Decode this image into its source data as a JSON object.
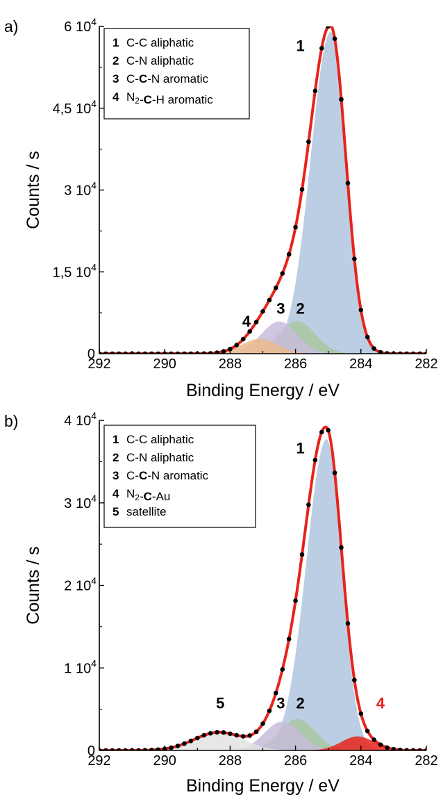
{
  "chart_data": [
    {
      "type": "area",
      "panel_label": "a)",
      "xlabel": "Binding Energy / eV",
      "ylabel": "Counts / s",
      "xlim": [
        292,
        282
      ],
      "x_reversed": true,
      "ylim": [
        0,
        60000
      ],
      "x_ticks": [
        "292",
        "290",
        "288",
        "286",
        "284",
        "282"
      ],
      "y_ticks": [
        {
          "mantissa": "0",
          "exp": ""
        },
        {
          "mantissa": "1,5 10",
          "exp": "4"
        },
        {
          "mantissa": "3 10",
          "exp": "4"
        },
        {
          "mantissa": "4,5 10",
          "exp": "4"
        },
        {
          "mantissa": "6 10",
          "exp": "4"
        }
      ],
      "legend_position": "top-left",
      "legend": [
        {
          "num": "1",
          "parts": [
            {
              "t": "C-C aliphatic"
            }
          ]
        },
        {
          "num": "2",
          "parts": [
            {
              "t": "C-N aliphatic"
            }
          ]
        },
        {
          "num": "3",
          "parts": [
            {
              "t": "C-"
            },
            {
              "t": "C",
              "b": true
            },
            {
              "t": "-N aromatic"
            }
          ]
        },
        {
          "num": "4",
          "parts": [
            {
              "t": "N"
            },
            {
              "t": "2",
              "sub": true
            },
            {
              "t": "-"
            },
            {
              "t": "C",
              "b": true
            },
            {
              "t": "-H aromatic"
            }
          ]
        }
      ],
      "components": [
        {
          "label": "1",
          "center": 284.92,
          "height": 59000,
          "sigma_low_be": 0.46,
          "sigma_high_be": 0.62,
          "color": "#b8cbe3",
          "label_at": [
            285.85,
            55500
          ],
          "label_color": "#000000"
        },
        {
          "label": "2",
          "center": 285.95,
          "height": 6000,
          "sigma_low_be": 0.55,
          "sigma_high_be": 0.55,
          "color": "#a9c7a0",
          "label_at": [
            285.85,
            7300
          ],
          "label_color": "#000000"
        },
        {
          "label": "3",
          "center": 286.5,
          "height": 5900,
          "sigma_low_be": 0.55,
          "sigma_high_be": 0.55,
          "color": "#c8bcdb",
          "label_at": [
            286.45,
            7300
          ],
          "label_color": "#000000"
        },
        {
          "label": "4",
          "center": 287.1,
          "height": 2700,
          "sigma_low_be": 0.55,
          "sigma_high_be": 0.55,
          "color": "#ecb98c",
          "label_at": [
            287.5,
            5000
          ],
          "label_color": "#000000"
        }
      ],
      "envelope_color": "#e8231b",
      "data_points_color": "#000000"
    },
    {
      "type": "area",
      "panel_label": "b)",
      "xlabel": "Binding Energy / eV",
      "ylabel": "Counts / s",
      "xlim": [
        292,
        282
      ],
      "x_reversed": true,
      "ylim": [
        0,
        40000
      ],
      "x_ticks": [
        "292",
        "290",
        "288",
        "286",
        "284",
        "282"
      ],
      "y_ticks": [
        {
          "mantissa": "0",
          "exp": ""
        },
        {
          "mantissa": "1 10",
          "exp": "4"
        },
        {
          "mantissa": "2 10",
          "exp": "4"
        },
        {
          "mantissa": "3 10",
          "exp": "4"
        },
        {
          "mantissa": "4 10",
          "exp": "4"
        }
      ],
      "legend_position": "top-left",
      "legend": [
        {
          "num": "1",
          "parts": [
            {
              "t": "C-C aliphatic"
            }
          ]
        },
        {
          "num": "2",
          "parts": [
            {
              "t": "C-N aliphatic"
            }
          ]
        },
        {
          "num": "3",
          "parts": [
            {
              "t": "C-"
            },
            {
              "t": "C",
              "b": true
            },
            {
              "t": "-N aromatic"
            }
          ]
        },
        {
          "num": "4",
          "parts": [
            {
              "t": "N"
            },
            {
              "t": "2",
              "sub": true
            },
            {
              "t": "-"
            },
            {
              "t": "C",
              "b": true
            },
            {
              "t": "-Au"
            }
          ]
        },
        {
          "num": "5",
          "parts": [
            {
              "t": "satellite"
            }
          ]
        }
      ],
      "components": [
        {
          "label": "1",
          "center": 285.05,
          "height": 37700,
          "sigma_low_be": 0.46,
          "sigma_high_be": 0.62,
          "color": "#b8cbe3",
          "label_at": [
            285.85,
            36000
          ],
          "label_color": "#000000"
        },
        {
          "label": "2",
          "center": 285.95,
          "height": 3800,
          "sigma_low_be": 0.55,
          "sigma_high_be": 0.55,
          "color": "#a9c7a0",
          "label_at": [
            285.85,
            5100
          ],
          "label_color": "#000000"
        },
        {
          "label": "3",
          "center": 286.4,
          "height": 3500,
          "sigma_low_be": 0.55,
          "sigma_high_be": 0.55,
          "color": "#c8bcdb",
          "label_at": [
            286.45,
            5100
          ],
          "label_color": "#000000"
        },
        {
          "label": "4",
          "center": 284.1,
          "height": 1700,
          "sigma_low_be": 0.5,
          "sigma_high_be": 0.5,
          "color": "#e8231b",
          "label_at": [
            283.4,
            5100
          ],
          "label_color": "#e8231b"
        },
        {
          "label": "5",
          "center": 288.35,
          "height": 2200,
          "sigma_low_be": 0.75,
          "sigma_high_be": 0.75,
          "color": "#e3e3e3",
          "label_at": [
            288.3,
            5100
          ],
          "label_color": "#000000"
        }
      ],
      "envelope_color": "#e8231b",
      "data_points_color": "#000000"
    }
  ]
}
